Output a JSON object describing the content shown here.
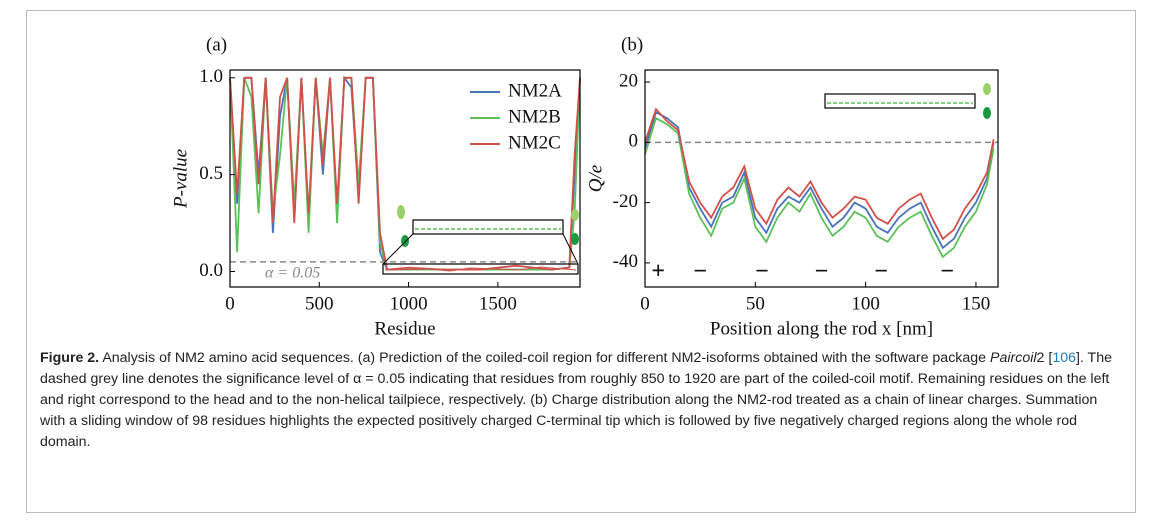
{
  "chart_data": [
    {
      "type": "line",
      "panel_label": "(a)",
      "x_label": "Residue",
      "y_label": "P-value",
      "x": [
        0,
        40,
        80,
        120,
        160,
        200,
        240,
        280,
        320,
        360,
        400,
        440,
        480,
        520,
        560,
        600,
        640,
        680,
        720,
        760,
        800,
        840,
        880,
        1000,
        1200,
        1400,
        1600,
        1800,
        1900,
        1930,
        1960
      ],
      "series": [
        {
          "name": "NM2A",
          "color": "#4a72b8",
          "values": [
            1,
            0.35,
            1,
            1,
            0.5,
            1,
            0.2,
            0.8,
            1,
            0.3,
            1,
            0.25,
            1,
            0.5,
            1,
            0.3,
            1,
            0.95,
            0.4,
            1,
            1,
            0.1,
            0.01,
            0.01,
            0.01,
            0.01,
            0.01,
            0.01,
            0.02,
            0.5,
            1
          ]
        },
        {
          "name": "NM2B",
          "color": "#5cc05a",
          "values": [
            1,
            0.1,
            1,
            0.9,
            0.3,
            1,
            0.3,
            0.6,
            1,
            0.35,
            1,
            0.2,
            1,
            0.6,
            1,
            0.25,
            1,
            1,
            0.45,
            1,
            1,
            0.15,
            0.01,
            0.01,
            0.01,
            0.01,
            0.01,
            0.01,
            0.02,
            0.3,
            1
          ]
        },
        {
          "name": "NM2C",
          "color": "#d0504a",
          "values": [
            1,
            0.4,
            1,
            1,
            0.45,
            1,
            0.25,
            0.9,
            1,
            0.25,
            1,
            0.3,
            1,
            0.55,
            1,
            0.35,
            1,
            1,
            0.35,
            1,
            1,
            0.2,
            0.01,
            0.02,
            0.01,
            0.01,
            0.03,
            0.01,
            0.02,
            0.6,
            1
          ]
        }
      ],
      "xlim": [
        0,
        1960
      ],
      "xticks": [
        0,
        500,
        1000,
        1500
      ],
      "ylim": [
        -0.08,
        1.04
      ],
      "yticks": [
        {
          "value": 0,
          "label": "0.0"
        },
        {
          "value": 0.5,
          "label": "0.5"
        },
        {
          "value": 1,
          "label": "1.0"
        }
      ],
      "hline": 0.05,
      "hline_label": "α = 0.05",
      "legend": "upper right"
    },
    {
      "type": "line",
      "panel_label": "(b)",
      "x_label": "Position along the rod x [nm]",
      "y_label": "Q/e",
      "x": [
        0,
        5,
        10,
        15,
        20,
        25,
        30,
        35,
        40,
        45,
        50,
        55,
        60,
        65,
        70,
        75,
        80,
        85,
        90,
        95,
        100,
        105,
        110,
        115,
        120,
        125,
        130,
        135,
        140,
        145,
        150,
        155,
        158
      ],
      "series": [
        {
          "name": "NM2A",
          "color": "#4a72b8",
          "values": [
            -2,
            10,
            8,
            5,
            -15,
            -22,
            -28,
            -20,
            -18,
            -10,
            -25,
            -30,
            -22,
            -18,
            -20,
            -15,
            -22,
            -28,
            -25,
            -20,
            -22,
            -28,
            -30,
            -25,
            -22,
            -20,
            -28,
            -35,
            -32,
            -25,
            -20,
            -12,
            0
          ]
        },
        {
          "name": "NM2B",
          "color": "#5cc05a",
          "values": [
            -4,
            8,
            6,
            3,
            -17,
            -25,
            -31,
            -22,
            -20,
            -12,
            -28,
            -33,
            -25,
            -20,
            -23,
            -17,
            -25,
            -31,
            -28,
            -23,
            -25,
            -31,
            -33,
            -28,
            -25,
            -23,
            -31,
            -38,
            -35,
            -28,
            -23,
            -14,
            -2
          ]
        },
        {
          "name": "NM2C",
          "color": "#d0504a",
          "values": [
            0,
            11,
            7,
            4,
            -13,
            -20,
            -25,
            -18,
            -15,
            -8,
            -22,
            -27,
            -19,
            -15,
            -18,
            -13,
            -20,
            -25,
            -22,
            -18,
            -19,
            -25,
            -27,
            -22,
            -19,
            -17,
            -25,
            -32,
            -29,
            -22,
            -17,
            -10,
            1
          ]
        }
      ],
      "xlim": [
        0,
        160
      ],
      "xticks": [
        0,
        50,
        100,
        150
      ],
      "ylim": [
        -48,
        24
      ],
      "yticks": [
        -40,
        -20,
        0,
        20
      ],
      "hline": 0,
      "signs": [
        "+",
        "−",
        "−",
        "−",
        "−",
        "−"
      ]
    }
  ],
  "caption": {
    "label": "Figure 2.",
    "parts": [
      "Analysis of NM2 amino acid sequences. (a) Prediction of the coiled-coil region for different NM2-isoforms obtained with the software package ",
      "Paircoil",
      "2 [",
      "106",
      "]. The dashed grey line denotes the significance level of α = 0.05 indicating that residues from roughly 850 to 1920 are part of the coiled-coil motif. Remaining residues on the left and right correspond to the head and to the non-helical tailpiece, respectively. (b) Charge distribution along the NM2-rod treated as a chain of linear charges. Summation with a sliding window of 98 residues highlights the expected positively charged C-terminal tip which is followed by five negatively charged regions along the whole rod domain."
    ]
  }
}
